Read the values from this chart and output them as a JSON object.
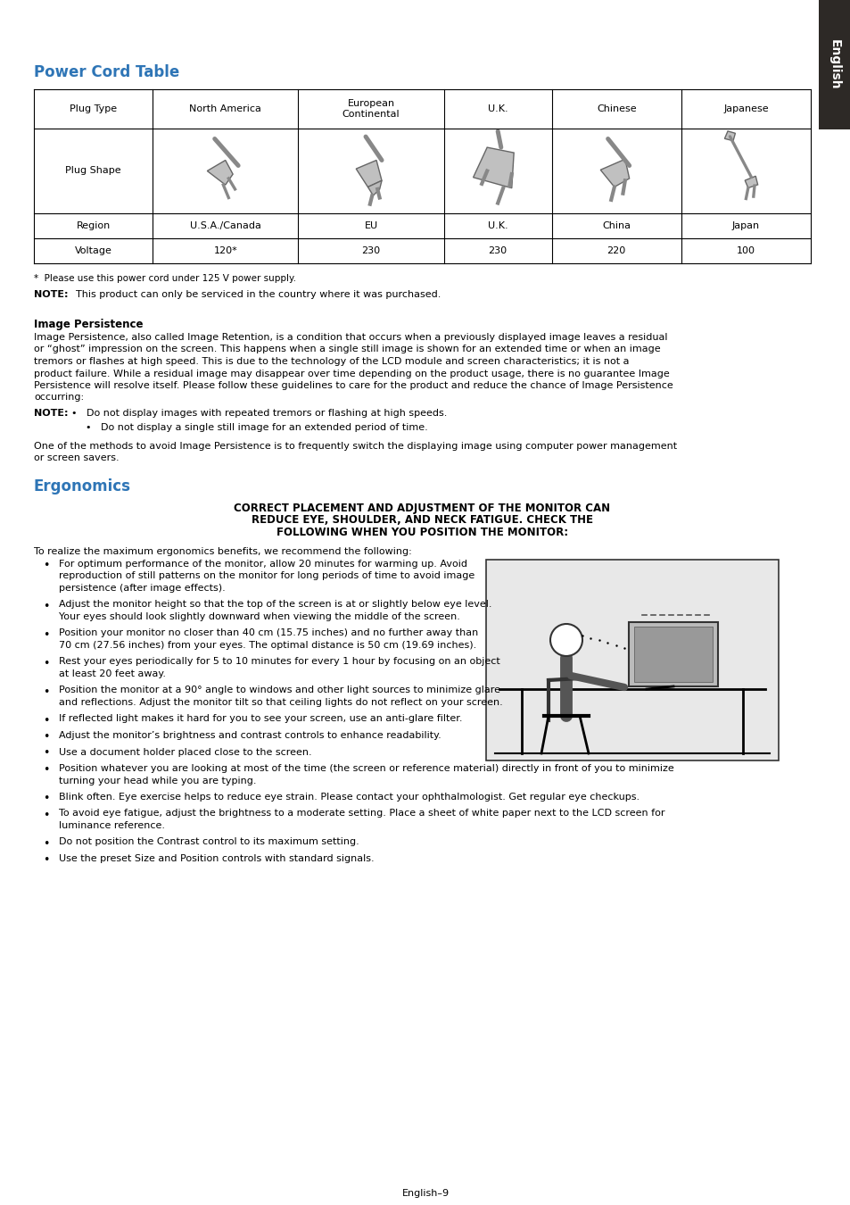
{
  "title_power": "Power Cord Table",
  "title_ergonomics": "Ergonomics",
  "section_color": "#2E75B6",
  "bg_color": "#FFFFFF",
  "tab_headers": [
    "Plug Type",
    "North America",
    "European\nContinental",
    "U.K.",
    "Chinese",
    "Japanese"
  ],
  "tab_row2_label": "Plug Shape",
  "tab_row3": [
    "Region",
    "U.S.A./Canada",
    "EU",
    "U.K.",
    "China",
    "Japan"
  ],
  "tab_row4": [
    "Voltage",
    "120*",
    "230",
    "230",
    "220",
    "100"
  ],
  "footnote": "*  Please use this power cord under 125 V power supply.",
  "note1_bold": "NOTE:",
  "note1_text": "  This product can only be serviced in the country where it was purchased.",
  "section2_bold": "Image Persistence",
  "section2_para1": "Image Persistence, also called Image Retention, is a condition that occurs when a previously displayed image leaves a residual",
  "section2_para2": "or “ghost” impression on the screen. This happens when a single still image is shown for an extended time or when an image",
  "section2_para3": "tremors or flashes at high speed. This is due to the technology of the LCD module and screen characteristics; it is not a",
  "section2_para4": "product failure. While a residual image may disappear over time depending on the product usage, there is no guarantee Image",
  "section2_para5": "Persistence will resolve itself. Please follow these guidelines to care for the product and reduce the chance of Image Persistence",
  "section2_para6": "occurring:",
  "note2_bold": "NOTE:",
  "note2_bullet1": "Do not display images with repeated tremors or flashing at high speeds.",
  "note2_bullet2": "Do not display a single still image for an extended period of time.",
  "para_after_note2_1": "One of the methods to avoid Image Persistence is to frequently switch the displaying image using computer power management",
  "para_after_note2_2": "or screen savers.",
  "ergo_centered_1": "CORRECT PLACEMENT AND ADJUSTMENT OF THE MONITOR CAN",
  "ergo_centered_2": "REDUCE EYE, SHOULDER, AND NECK FATIGUE. CHECK THE",
  "ergo_centered_3": "FOLLOWING WHEN YOU POSITION THE MONITOR:",
  "ergo_intro": "To realize the maximum ergonomics benefits, we recommend the following:",
  "ergo_bullets": [
    [
      "For optimum performance of the monitor, allow 20 minutes for warming up. Avoid",
      "reproduction of still patterns on the monitor for long periods of time to avoid image",
      "persistence (after image effects)."
    ],
    [
      "Adjust the monitor height so that the top of the screen is at or slightly below eye level.",
      "Your eyes should look slightly downward when viewing the middle of the screen."
    ],
    [
      "Position your monitor no closer than 40 cm (15.75 inches) and no further away than",
      "70 cm (27.56 inches) from your eyes. The optimal distance is 50 cm (19.69 inches)."
    ],
    [
      "Rest your eyes periodically for 5 to 10 minutes for every 1 hour by focusing on an object",
      "at least 20 feet away."
    ],
    [
      "Position the monitor at a 90° angle to windows and other light sources to minimize glare",
      "and reflections. Adjust the monitor tilt so that ceiling lights do not reflect on your screen."
    ],
    [
      "If reflected light makes it hard for you to see your screen, use an anti-glare filter."
    ],
    [
      "Adjust the monitor’s brightness and contrast controls to enhance readability."
    ],
    [
      "Use a document holder placed close to the screen."
    ],
    [
      "Position whatever you are looking at most of the time (the screen or reference material) directly in front of you to minimize",
      "turning your head while you are typing."
    ],
    [
      "Blink often. Eye exercise helps to reduce eye strain. Please contact your ophthalmologist. Get regular eye checkups."
    ],
    [
      "To avoid eye fatigue, adjust the brightness to a moderate setting. Place a sheet of white paper next to the LCD screen for",
      "luminance reference."
    ],
    [
      "Do not position the Contrast control to its maximum setting."
    ],
    [
      "Use the preset Size and Position controls with standard signals."
    ]
  ],
  "footer": "English–9",
  "sidebar_text": "English",
  "sidebar_bg": "#2D2926",
  "sidebar_text_color": "#FFFFFF"
}
